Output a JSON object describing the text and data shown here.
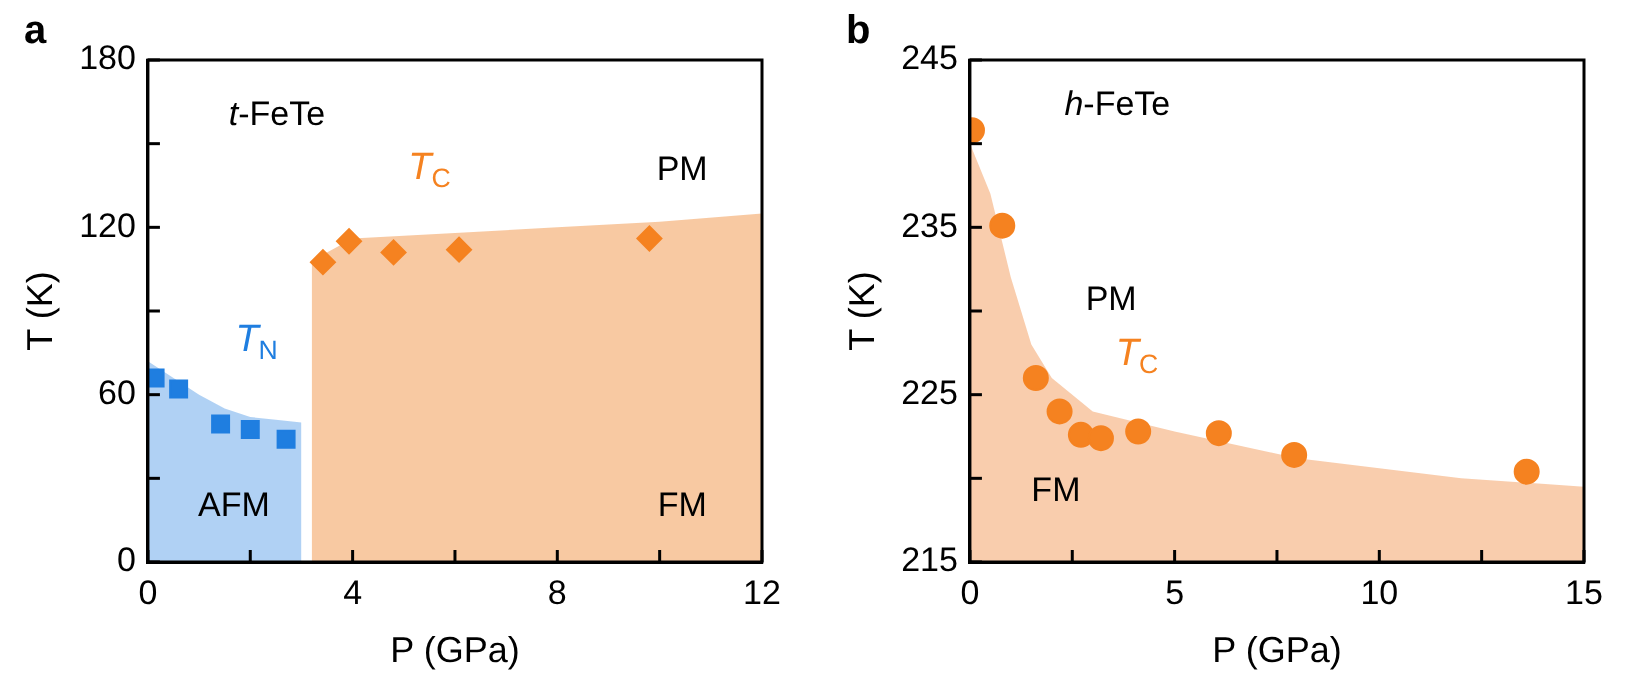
{
  "chart_data": [
    {
      "type": "scatter",
      "title": "a",
      "xlabel": "P (GPa)",
      "ylabel": "T (K)",
      "xlim": [
        0,
        12
      ],
      "ylim": [
        0,
        180
      ],
      "xticks": [
        0,
        {
          "value": 2,
          "label": null
        },
        4,
        {
          "value": 6,
          "label": null
        },
        8,
        {
          "value": 10,
          "label": null
        },
        12
      ],
      "yticks": [
        0,
        {
          "value": 30,
          "label": null
        },
        60,
        {
          "value": 90,
          "label": null
        },
        120,
        {
          "value": 150,
          "label": null
        },
        180
      ],
      "grid": false,
      "legend": false,
      "series": [
        {
          "type": "area",
          "color": "#8fbdf0",
          "x": [
            0,
            0.5,
            1,
            1.5,
            2,
            2.5,
            3
          ],
          "values": [
            72,
            66,
            60,
            55,
            52,
            51,
            50
          ]
        },
        {
          "type": "area",
          "color": "#f5b27a",
          "x": [
            3.2,
            4,
            6,
            8,
            10,
            12
          ],
          "values": [
            108,
            116,
            118,
            120,
            122,
            125
          ]
        },
        {
          "name": "T$_{N}$",
          "color": "#1f7ee0",
          "marker": "square",
          "x": [
            0.14,
            0.6,
            1.42,
            2.0,
            2.7
          ],
          "values": [
            66,
            62,
            49.5,
            47.5,
            44
          ]
        },
        {
          "name": "T$_{C}$",
          "color": "#f58220",
          "marker": "diamond",
          "x": [
            3.42,
            3.93,
            4.8,
            6.08,
            9.8
          ],
          "values": [
            107.5,
            115,
            111,
            112,
            116
          ]
        }
      ],
      "annotations": [
        "t-FeTe",
        "PM",
        "AFM",
        "FM"
      ]
    },
    {
      "type": "scatter",
      "title": "b",
      "xlabel": "P (GPa)",
      "ylabel": "T (K)",
      "xlim": [
        0,
        15
      ],
      "ylim": [
        215,
        245
      ],
      "xticks": [
        0,
        {
          "value": 2.5,
          "label": null
        },
        5,
        {
          "value": 7.5,
          "label": null
        },
        10,
        {
          "value": 12.5,
          "label": null
        },
        15
      ],
      "yticks": [
        215,
        {
          "value": 220,
          "label": null
        },
        225,
        {
          "value": 230,
          "label": null
        },
        235,
        {
          "value": 240,
          "label": null
        },
        245
      ],
      "grid": false,
      "legend": false,
      "series": [
        {
          "type": "area",
          "color": "#f7b88a",
          "x": [
            0,
            0.5,
            1,
            1.5,
            2,
            3,
            5,
            8,
            12,
            15
          ],
          "values": [
            240,
            237,
            232,
            228,
            226,
            224,
            222.8,
            221.2,
            220,
            219.5
          ]
        },
        {
          "name": "T$_{C}$",
          "color": "#f58220",
          "marker": "circle",
          "x": [
            0.05,
            0.79,
            1.61,
            2.19,
            2.71,
            3.2,
            4.11,
            6.08,
            7.92,
            13.6
          ],
          "values": [
            240.8,
            235.1,
            226.0,
            224.0,
            222.6,
            222.4,
            222.8,
            222.7,
            221.4,
            220.4
          ]
        }
      ],
      "annotations": [
        "h-FeTe",
        "PM",
        "FM"
      ]
    }
  ]
}
